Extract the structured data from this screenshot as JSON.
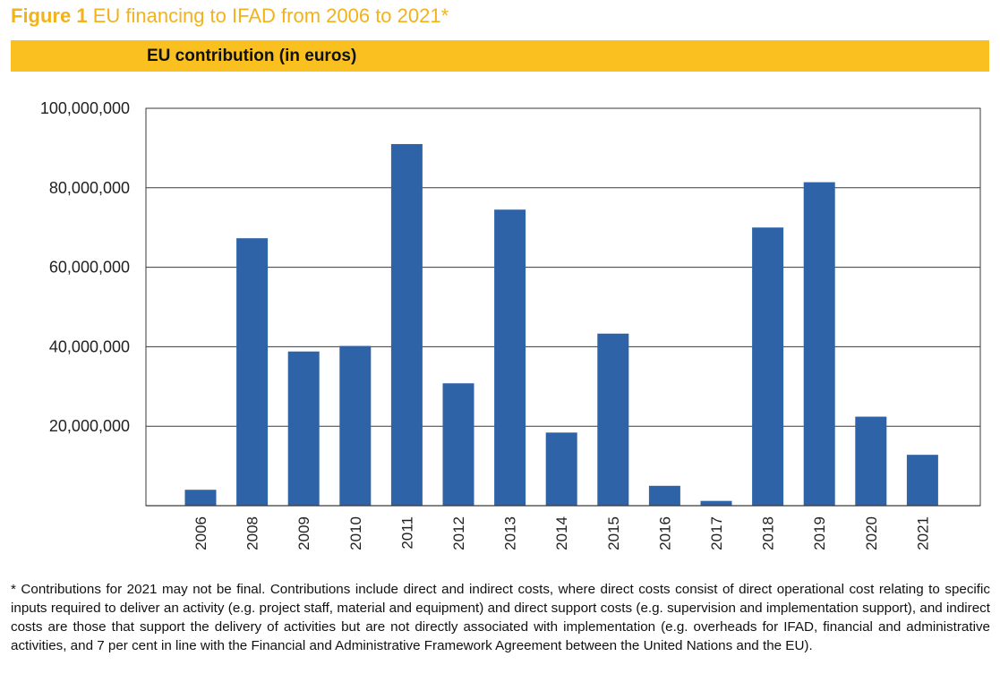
{
  "figure": {
    "label": "Figure 1",
    "title": "EU financing to IFAD from 2006 to 2021*"
  },
  "banner": {
    "text": "EU contribution (in euros)"
  },
  "colors": {
    "accent": "#f9c01f",
    "title": "#f2b21b",
    "bar": "#2e63a8"
  },
  "chart_data": {
    "type": "bar",
    "title": "",
    "xlabel": "",
    "ylabel": "",
    "categories": [
      "2006",
      "2008",
      "2009",
      "2010",
      "2011",
      "2012",
      "2013",
      "2014",
      "2015",
      "2016",
      "2017",
      "2018",
      "2019",
      "2020",
      "2021"
    ],
    "values": [
      4000000,
      67300000,
      38800000,
      40200000,
      91000000,
      30800000,
      74500000,
      18400000,
      43300000,
      5000000,
      1200000,
      70000000,
      81400000,
      22400000,
      12800000
    ],
    "ylim": [
      0,
      100000000
    ],
    "yticks": [
      20000000,
      40000000,
      60000000,
      80000000,
      100000000
    ],
    "ytick_labels": [
      "20,000,000",
      "40,000,000",
      "60,000,000",
      "80,000,000",
      "100,000,000"
    ],
    "grid": true,
    "legend": "none",
    "xtick_rotation": "vertical"
  },
  "footnote": "* Contributions for 2021 may not be final. Contributions include direct and indirect costs, where direct costs consist of direct operational cost relating to specific inputs required to deliver an activity (e.g. project staff, material and equipment) and direct support costs (e.g. supervision and implementation support), and indirect costs are those that support the delivery of activities but are not directly associated with implementation (e.g. overheads for IFAD, financial and administrative activities, and 7 per cent in line with the Financial and Administrative Framework Agreement between the United Nations and the EU)."
}
